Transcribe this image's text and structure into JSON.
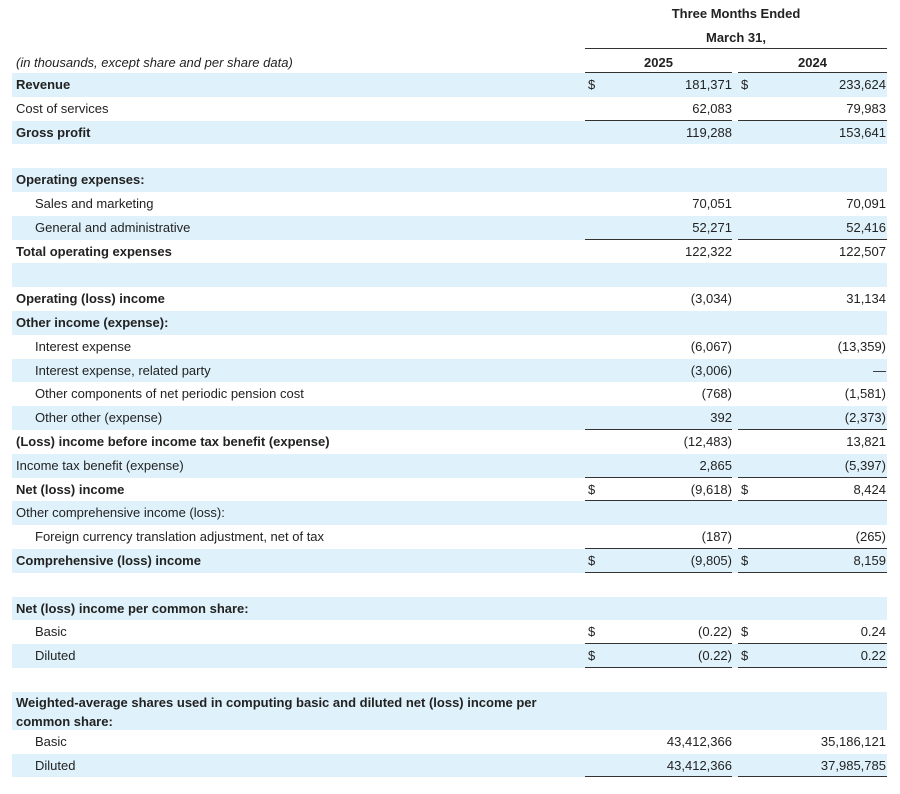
{
  "header": {
    "period_line1": "Three Months Ended",
    "period_line2": "March 31,",
    "col_2025": "2025",
    "col_2024": "2024",
    "units_note": "(in thousands, except share and per share data)"
  },
  "rows": [
    {
      "label": "Revenue",
      "style": "bold",
      "shaded": true,
      "cur1": "$",
      "v1": "181,371",
      "cur2": "$",
      "v2": "233,624"
    },
    {
      "label": "Cost of services",
      "style": "",
      "shaded": false,
      "v1": "62,083",
      "v2": "79,983",
      "underline": true
    },
    {
      "label": "Gross profit",
      "style": "bold",
      "shaded": true,
      "v1": "119,288",
      "v2": "153,641"
    },
    {
      "label": "",
      "style": "",
      "shaded": false,
      "spacer": true
    },
    {
      "label": "Operating expenses:",
      "style": "bold",
      "shaded": true
    },
    {
      "label": "Sales and marketing",
      "style": "indent",
      "shaded": false,
      "v1": "70,051",
      "v2": "70,091"
    },
    {
      "label": "General and administrative",
      "style": "indent",
      "shaded": true,
      "v1": "52,271",
      "v2": "52,416",
      "underline": true
    },
    {
      "label": "Total operating expenses",
      "style": "bold",
      "shaded": false,
      "v1": "122,322",
      "v2": "122,507"
    },
    {
      "label": "",
      "style": "",
      "shaded": true,
      "spacer": true
    },
    {
      "label": "Operating (loss) income",
      "style": "bold",
      "shaded": false,
      "v1": "(3,034)",
      "v2": "31,134"
    },
    {
      "label": "Other income (expense):",
      "style": "bold",
      "shaded": true
    },
    {
      "label": "Interest expense",
      "style": "indent",
      "shaded": false,
      "v1": "(6,067)",
      "v2": "(13,359)"
    },
    {
      "label": "Interest expense, related party",
      "style": "indent",
      "shaded": true,
      "v1": "(3,006)",
      "v2": "—"
    },
    {
      "label": "Other components of net periodic pension cost",
      "style": "indent",
      "shaded": false,
      "v1": "(768)",
      "v2": "(1,581)"
    },
    {
      "label": "Other other (expense)",
      "style": "indent",
      "shaded": true,
      "v1": "392",
      "v2": "(2,373)",
      "underline": true
    },
    {
      "label": "(Loss) income before income tax benefit (expense)",
      "style": "bold",
      "shaded": false,
      "v1": "(12,483)",
      "v2": "13,821"
    },
    {
      "label": "Income tax benefit (expense)",
      "style": "",
      "shaded": true,
      "v1": "2,865",
      "v2": "(5,397)",
      "underline": true
    },
    {
      "label": "Net (loss) income",
      "style": "bold",
      "shaded": false,
      "cur1": "$",
      "v1": "(9,618)",
      "cur2": "$",
      "v2": "8,424",
      "underline": true
    },
    {
      "label": "Other comprehensive income (loss):",
      "style": "",
      "shaded": true
    },
    {
      "label": "Foreign currency translation adjustment, net of tax",
      "style": "indent",
      "shaded": false,
      "v1": "(187)",
      "v2": "(265)",
      "underline": true
    },
    {
      "label": "Comprehensive (loss) income",
      "style": "bold",
      "shaded": true,
      "cur1": "$",
      "v1": "(9,805)",
      "cur2": "$",
      "v2": "8,159",
      "underline": true
    },
    {
      "label": "",
      "style": "",
      "shaded": false,
      "spacer": true
    },
    {
      "label": "Net (loss) income per common share:",
      "style": "bold",
      "shaded": true
    },
    {
      "label": "Basic",
      "style": "indent",
      "shaded": false,
      "cur1": "$",
      "v1": "(0.22)",
      "cur2": "$",
      "v2": "0.24",
      "underline": true
    },
    {
      "label": "Diluted",
      "style": "indent",
      "shaded": true,
      "cur1": "$",
      "v1": "(0.22)",
      "cur2": "$",
      "v2": "0.22",
      "underline": true
    },
    {
      "label": "",
      "style": "",
      "shaded": false,
      "spacer": true
    },
    {
      "label": "Weighted-average shares used in computing basic and diluted net (loss) income per common share:",
      "style": "bold wrap",
      "shaded": true,
      "tall": true
    },
    {
      "label": "Basic",
      "style": "indent",
      "shaded": false,
      "v1": "43,412,366",
      "v2": "35,186,121"
    },
    {
      "label": "Diluted",
      "style": "indent",
      "shaded": true,
      "v1": "43,412,366",
      "v2": "37,985,785",
      "underline": true
    }
  ]
}
